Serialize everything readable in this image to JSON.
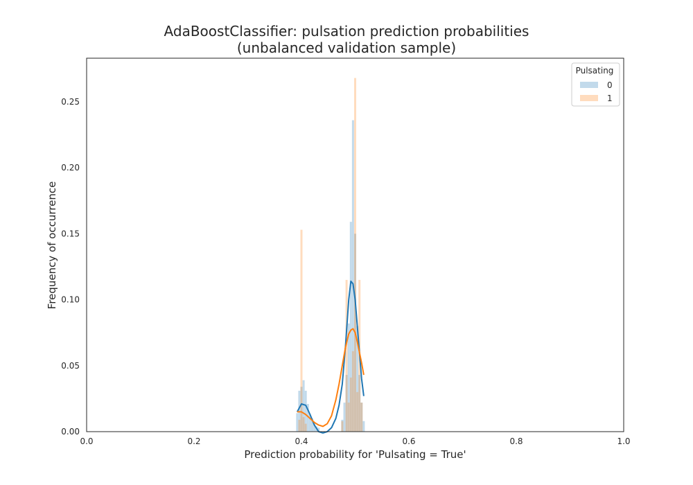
{
  "chart_data": {
    "type": "bar",
    "title_line1": "AdaBoostClassifier: pulsation prediction probabilities",
    "title_line2": "(unbalanced validation sample)",
    "xlabel": "Prediction probability for 'Pulsating = True'",
    "ylabel": "Frequency of occurrence",
    "xlim": [
      0.0,
      1.0
    ],
    "ylim": [
      0.0,
      0.283
    ],
    "xticks": [
      "0.0",
      "0.2",
      "0.4",
      "0.6",
      "0.8",
      "1.0"
    ],
    "yticks": [
      "0.00",
      "0.05",
      "0.10",
      "0.15",
      "0.20",
      "0.25"
    ],
    "grid": false,
    "legend": {
      "title": "Pulsating",
      "position": "top-right",
      "entries": [
        "0",
        "1"
      ]
    },
    "colors": {
      "0": "#1f77b4",
      "1": "#ff7f0e"
    },
    "series": [
      {
        "name": "0",
        "histogram": {
          "x": [
            0.392,
            0.396,
            0.4,
            0.404,
            0.408,
            0.412,
            0.416,
            0.42,
            0.424,
            0.428,
            0.432,
            0.476,
            0.48,
            0.484,
            0.488,
            0.492,
            0.496,
            0.5,
            0.504,
            0.508,
            0.512,
            0.516
          ],
          "values": [
            0.014,
            0.031,
            0.034,
            0.039,
            0.031,
            0.021,
            0.013,
            0.01,
            0.006,
            0.004,
            0.003,
            0.009,
            0.022,
            0.043,
            0.082,
            0.159,
            0.236,
            0.15,
            0.08,
            0.043,
            0.022,
            0.008
          ]
        },
        "kde": {
          "x": [
            0.392,
            0.4,
            0.408,
            0.416,
            0.424,
            0.432,
            0.44,
            0.448,
            0.456,
            0.464,
            0.47,
            0.476,
            0.482,
            0.488,
            0.492,
            0.496,
            0.5,
            0.504,
            0.508,
            0.512,
            0.516
          ],
          "values": [
            0.015,
            0.021,
            0.02,
            0.013,
            0.005,
            0.0,
            -0.001,
            0.0,
            0.003,
            0.01,
            0.02,
            0.036,
            0.065,
            0.1,
            0.114,
            0.112,
            0.1,
            0.08,
            0.06,
            0.04,
            0.027
          ]
        }
      },
      {
        "name": "1",
        "histogram": {
          "x": [
            0.396,
            0.4,
            0.404,
            0.408,
            0.476,
            0.484,
            0.488,
            0.492,
            0.496,
            0.5,
            0.504,
            0.508,
            0.512
          ],
          "values": [
            0.009,
            0.153,
            0.011,
            0.006,
            0.008,
            0.115,
            0.022,
            0.041,
            0.061,
            0.268,
            0.03,
            0.115,
            0.022
          ]
        },
        "kde": {
          "x": [
            0.392,
            0.4,
            0.408,
            0.416,
            0.424,
            0.432,
            0.44,
            0.448,
            0.456,
            0.464,
            0.47,
            0.476,
            0.482,
            0.488,
            0.492,
            0.496,
            0.5,
            0.504,
            0.508,
            0.512,
            0.516
          ],
          "values": [
            0.015,
            0.015,
            0.013,
            0.01,
            0.007,
            0.005,
            0.004,
            0.006,
            0.012,
            0.024,
            0.036,
            0.05,
            0.064,
            0.074,
            0.077,
            0.078,
            0.075,
            0.068,
            0.06,
            0.052,
            0.043
          ]
        }
      }
    ]
  }
}
